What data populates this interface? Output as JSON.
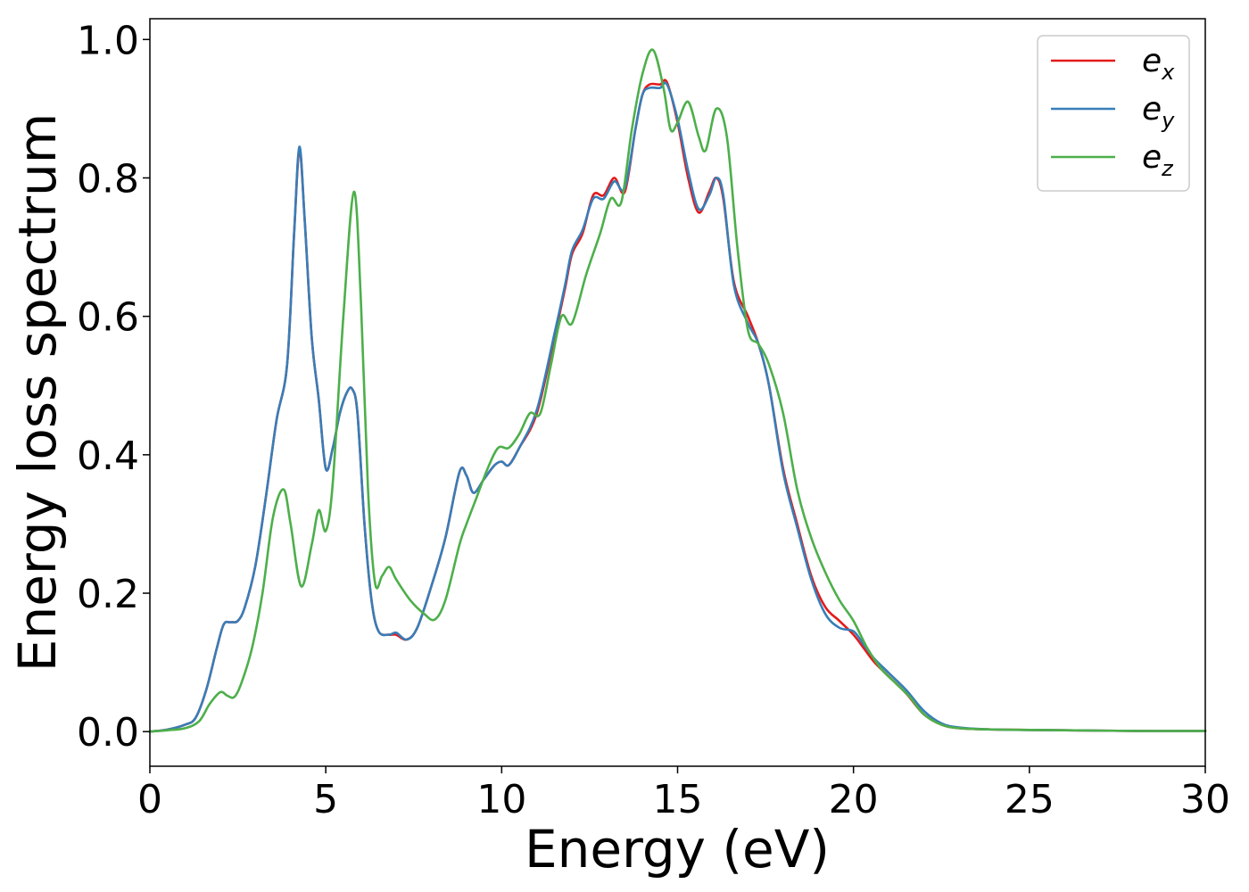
{
  "chart_data": {
    "type": "line",
    "xlabel": "Energy (eV)",
    "ylabel": "Energy loss spectrum",
    "xlim": [
      0,
      30
    ],
    "ylim": [
      -0.05,
      1.03
    ],
    "xticks": [
      0,
      5,
      10,
      15,
      20,
      25,
      30
    ],
    "yticks": [
      0.0,
      0.2,
      0.4,
      0.6,
      0.8,
      1.0
    ],
    "xtick_labels": [
      "0",
      "5",
      "10",
      "15",
      "20",
      "25",
      "30"
    ],
    "ytick_labels": [
      "0.0",
      "0.2",
      "0.4",
      "0.6",
      "0.8",
      "1.0"
    ],
    "grid": false,
    "legend_position": "top-right",
    "series": [
      {
        "name": "e_x",
        "label_main": "e",
        "label_sub": "x",
        "color": "#e41a1c",
        "x": [
          0,
          0.5,
          1,
          1.3,
          1.6,
          1.9,
          2.1,
          2.3,
          2.5,
          2.7,
          3,
          3.3,
          3.6,
          3.9,
          4.1,
          4.25,
          4.4,
          4.6,
          4.8,
          5,
          5.2,
          5.4,
          5.6,
          5.75,
          5.9,
          6.1,
          6.3,
          6.5,
          6.8,
          7,
          7.3,
          7.6,
          8,
          8.4,
          8.8,
          9,
          9.2,
          9.5,
          9.8,
          10,
          10.2,
          10.5,
          11,
          11.5,
          11.8,
          12,
          12.3,
          12.6,
          12.9,
          13.2,
          13.5,
          13.8,
          14,
          14.2,
          14.5,
          14.7,
          15,
          15.3,
          15.6,
          15.9,
          16.1,
          16.3,
          16.6,
          17,
          17.3,
          17.6,
          18,
          18.4,
          18.8,
          19.2,
          19.6,
          20,
          20.3,
          20.6,
          21,
          21.5,
          22,
          22.5,
          23,
          24,
          26,
          28,
          30
        ],
        "y": [
          0,
          0.003,
          0.01,
          0.02,
          0.06,
          0.12,
          0.155,
          0.158,
          0.16,
          0.18,
          0.24,
          0.34,
          0.45,
          0.53,
          0.72,
          0.84,
          0.74,
          0.57,
          0.48,
          0.38,
          0.41,
          0.46,
          0.49,
          0.495,
          0.46,
          0.3,
          0.19,
          0.145,
          0.14,
          0.14,
          0.133,
          0.15,
          0.21,
          0.28,
          0.375,
          0.37,
          0.345,
          0.365,
          0.385,
          0.39,
          0.385,
          0.41,
          0.46,
          0.57,
          0.64,
          0.69,
          0.72,
          0.775,
          0.775,
          0.8,
          0.78,
          0.87,
          0.92,
          0.935,
          0.935,
          0.938,
          0.88,
          0.8,
          0.75,
          0.78,
          0.8,
          0.77,
          0.65,
          0.6,
          0.56,
          0.5,
          0.38,
          0.3,
          0.225,
          0.18,
          0.16,
          0.14,
          0.12,
          0.1,
          0.08,
          0.055,
          0.025,
          0.01,
          0.005,
          0.003,
          0.002,
          0.001,
          0.001
        ]
      },
      {
        "name": "e_y",
        "label_main": "e",
        "label_sub": "y",
        "color": "#377eb8",
        "x": [
          0,
          0.5,
          1,
          1.3,
          1.6,
          1.9,
          2.1,
          2.3,
          2.5,
          2.7,
          3,
          3.3,
          3.6,
          3.9,
          4.1,
          4.25,
          4.4,
          4.6,
          4.8,
          5,
          5.2,
          5.4,
          5.6,
          5.75,
          5.9,
          6.1,
          6.3,
          6.5,
          6.8,
          7,
          7.3,
          7.6,
          8,
          8.4,
          8.8,
          9,
          9.2,
          9.5,
          9.8,
          10,
          10.2,
          10.5,
          11,
          11.5,
          11.8,
          12,
          12.3,
          12.6,
          12.9,
          13.2,
          13.5,
          13.8,
          14,
          14.2,
          14.5,
          14.7,
          15,
          15.3,
          15.6,
          15.9,
          16.1,
          16.3,
          16.6,
          17,
          17.3,
          17.6,
          18,
          18.4,
          18.8,
          19.2,
          19.6,
          20,
          20.3,
          20.6,
          21,
          21.5,
          22,
          22.5,
          23,
          24,
          26,
          28,
          30
        ],
        "y": [
          0,
          0.003,
          0.01,
          0.02,
          0.06,
          0.12,
          0.155,
          0.158,
          0.16,
          0.18,
          0.24,
          0.34,
          0.45,
          0.53,
          0.72,
          0.845,
          0.74,
          0.57,
          0.48,
          0.38,
          0.41,
          0.46,
          0.49,
          0.495,
          0.46,
          0.3,
          0.19,
          0.145,
          0.14,
          0.143,
          0.133,
          0.15,
          0.21,
          0.28,
          0.375,
          0.37,
          0.345,
          0.365,
          0.385,
          0.39,
          0.385,
          0.41,
          0.465,
          0.575,
          0.645,
          0.695,
          0.725,
          0.77,
          0.77,
          0.795,
          0.785,
          0.87,
          0.92,
          0.93,
          0.93,
          0.935,
          0.885,
          0.81,
          0.755,
          0.775,
          0.8,
          0.775,
          0.645,
          0.59,
          0.56,
          0.5,
          0.375,
          0.295,
          0.22,
          0.17,
          0.15,
          0.145,
          0.125,
          0.105,
          0.085,
          0.06,
          0.03,
          0.012,
          0.006,
          0.003,
          0.002,
          0.001,
          0.001
        ]
      },
      {
        "name": "e_z",
        "label_main": "e",
        "label_sub": "z",
        "color": "#4daf4a",
        "x": [
          0,
          0.5,
          1,
          1.4,
          1.7,
          2,
          2.2,
          2.4,
          2.6,
          2.9,
          3.2,
          3.5,
          3.8,
          4,
          4.3,
          4.6,
          4.8,
          5,
          5.2,
          5.5,
          5.8,
          6,
          6.2,
          6.4,
          6.6,
          6.8,
          7,
          7.4,
          7.8,
          8.1,
          8.4,
          8.8,
          9,
          9.3,
          9.6,
          9.9,
          10.2,
          10.5,
          10.8,
          11.1,
          11.4,
          11.7,
          12,
          12.4,
          12.8,
          13.1,
          13.4,
          13.7,
          14,
          14.3,
          14.6,
          14.8,
          15,
          15.3,
          15.6,
          15.8,
          16.1,
          16.4,
          16.7,
          17,
          17.3,
          17.6,
          18,
          18.4,
          18.8,
          19.2,
          19.6,
          20,
          20.4,
          20.8,
          21.2,
          21.6,
          22,
          22.5,
          23,
          24,
          26,
          28,
          30
        ],
        "y": [
          0,
          0.002,
          0.005,
          0.015,
          0.04,
          0.057,
          0.052,
          0.05,
          0.07,
          0.12,
          0.2,
          0.31,
          0.35,
          0.3,
          0.21,
          0.27,
          0.32,
          0.29,
          0.36,
          0.6,
          0.78,
          0.62,
          0.35,
          0.215,
          0.225,
          0.238,
          0.22,
          0.19,
          0.17,
          0.162,
          0.19,
          0.27,
          0.3,
          0.34,
          0.38,
          0.41,
          0.41,
          0.43,
          0.46,
          0.46,
          0.53,
          0.6,
          0.59,
          0.66,
          0.72,
          0.77,
          0.765,
          0.87,
          0.95,
          0.985,
          0.93,
          0.87,
          0.88,
          0.91,
          0.86,
          0.84,
          0.9,
          0.86,
          0.7,
          0.58,
          0.56,
          0.53,
          0.46,
          0.35,
          0.28,
          0.23,
          0.19,
          0.16,
          0.12,
          0.09,
          0.07,
          0.05,
          0.025,
          0.01,
          0.005,
          0.003,
          0.002,
          0.001,
          0.001
        ]
      }
    ]
  }
}
